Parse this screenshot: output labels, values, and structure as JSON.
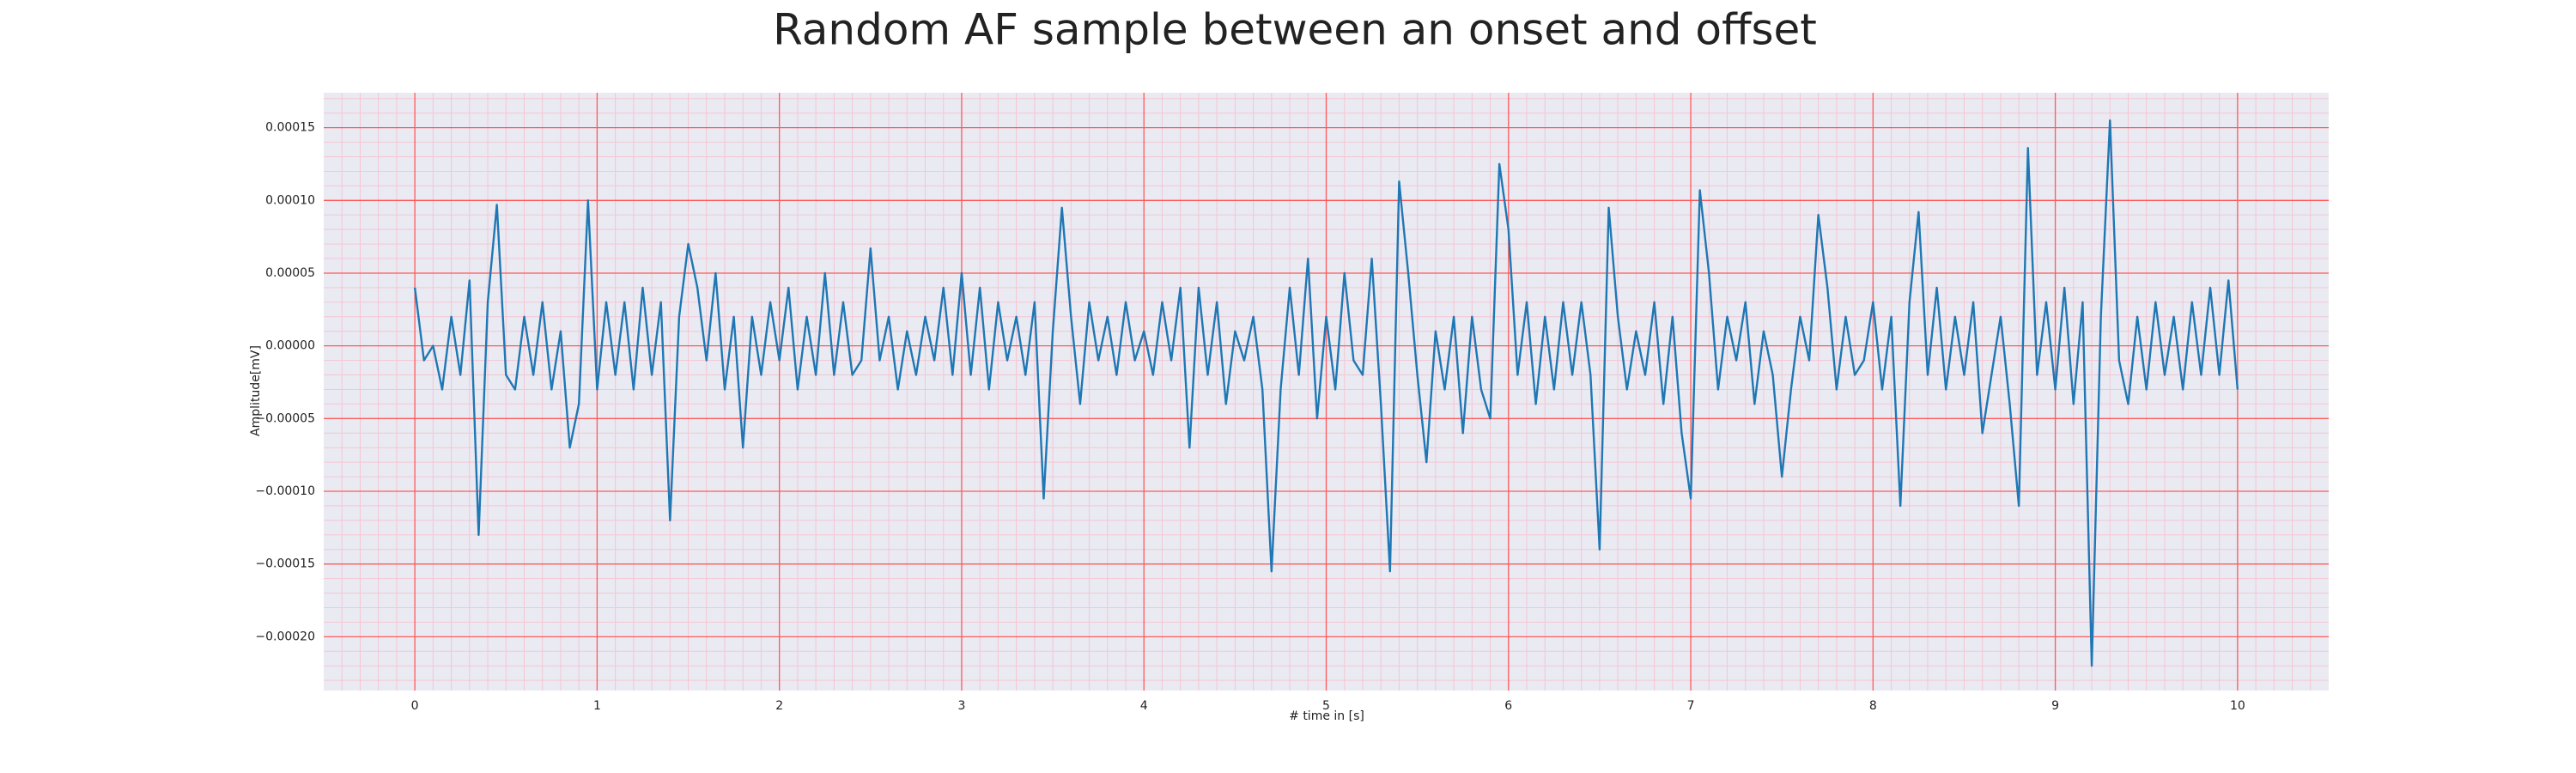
{
  "chart_data": {
    "type": "line",
    "title": "Random AF sample between an onset and offset",
    "xlabel": "# time in [s]",
    "ylabel": "Amplitude[mV]",
    "x": [
      0,
      0.05,
      0.1,
      0.15,
      0.2,
      0.25,
      0.3,
      0.35,
      0.4,
      0.45,
      0.5,
      0.55,
      0.6,
      0.65,
      0.7,
      0.75,
      0.8,
      0.85,
      0.9,
      0.95,
      1,
      1.05,
      1.1,
      1.15,
      1.2,
      1.25,
      1.3,
      1.35,
      1.4,
      1.45,
      1.5,
      1.55,
      1.6,
      1.65,
      1.7,
      1.75,
      1.8,
      1.85,
      1.9,
      1.95,
      2,
      2.05,
      2.1,
      2.15,
      2.2,
      2.25,
      2.3,
      2.35,
      2.4,
      2.45,
      2.5,
      2.55,
      2.6,
      2.65,
      2.7,
      2.75,
      2.8,
      2.85,
      2.9,
      2.95,
      3,
      3.05,
      3.1,
      3.15,
      3.2,
      3.25,
      3.3,
      3.35,
      3.4,
      3.45,
      3.5,
      3.55,
      3.6,
      3.65,
      3.7,
      3.75,
      3.8,
      3.85,
      3.9,
      3.95,
      4,
      4.05,
      4.1,
      4.15,
      4.2,
      4.25,
      4.3,
      4.35,
      4.4,
      4.45,
      4.5,
      4.55,
      4.6,
      4.65,
      4.7,
      4.75,
      4.8,
      4.85,
      4.9,
      4.95,
      5,
      5.05,
      5.1,
      5.15,
      5.2,
      5.25,
      5.3,
      5.35,
      5.4,
      5.45,
      5.5,
      5.55,
      5.6,
      5.65,
      5.7,
      5.75,
      5.8,
      5.85,
      5.9,
      5.95,
      6,
      6.05,
      6.1,
      6.15,
      6.2,
      6.25,
      6.3,
      6.35,
      6.4,
      6.45,
      6.5,
      6.55,
      6.6,
      6.65,
      6.7,
      6.75,
      6.8,
      6.85,
      6.9,
      6.95,
      7,
      7.05,
      7.1,
      7.15,
      7.2,
      7.25,
      7.3,
      7.35,
      7.4,
      7.45,
      7.5,
      7.55,
      7.6,
      7.65,
      7.7,
      7.75,
      7.8,
      7.85,
      7.9,
      7.95,
      8,
      8.05,
      8.1,
      8.15,
      8.2,
      8.25,
      8.3,
      8.35,
      8.4,
      8.45,
      8.5,
      8.55,
      8.6,
      8.65,
      8.7,
      8.75,
      8.8,
      8.85,
      8.9,
      8.95,
      9,
      9.05,
      9.1,
      9.15,
      9.2,
      9.25,
      9.3,
      9.35,
      9.4,
      9.45,
      9.5,
      9.55,
      9.6,
      9.65,
      9.7,
      9.75,
      9.8,
      9.85,
      9.9,
      9.95,
      10
    ],
    "values": [
      4e-05,
      -1e-05,
      0,
      -3e-05,
      2e-05,
      -2e-05,
      4.5e-05,
      -0.00013,
      3e-05,
      9.7e-05,
      -2e-05,
      -3e-05,
      2e-05,
      -2e-05,
      3e-05,
      -3e-05,
      1e-05,
      -7e-05,
      -4e-05,
      0.0001,
      -3e-05,
      3e-05,
      -2e-05,
      3e-05,
      -3e-05,
      4e-05,
      -2e-05,
      3e-05,
      -0.00012,
      2e-05,
      7e-05,
      4e-05,
      -1e-05,
      5e-05,
      -3e-05,
      2e-05,
      -7e-05,
      2e-05,
      -2e-05,
      3e-05,
      -1e-05,
      4e-05,
      -3e-05,
      2e-05,
      -2e-05,
      5e-05,
      -2e-05,
      3e-05,
      -2e-05,
      -1e-05,
      6.7e-05,
      -1e-05,
      2e-05,
      -3e-05,
      1e-05,
      -2e-05,
      2e-05,
      -1e-05,
      4e-05,
      -2e-05,
      5e-05,
      -2e-05,
      4e-05,
      -3e-05,
      3e-05,
      -1e-05,
      2e-05,
      -2e-05,
      3e-05,
      -0.000105,
      1e-05,
      9.5e-05,
      2e-05,
      -4e-05,
      3e-05,
      -1e-05,
      2e-05,
      -2e-05,
      3e-05,
      -1e-05,
      1e-05,
      -2e-05,
      3e-05,
      -1e-05,
      4e-05,
      -7e-05,
      4e-05,
      -2e-05,
      3e-05,
      -4e-05,
      1e-05,
      -1e-05,
      2e-05,
      -3e-05,
      -0.000155,
      -3e-05,
      4e-05,
      -2e-05,
      6e-05,
      -5e-05,
      2e-05,
      -3e-05,
      5e-05,
      -1e-05,
      -2e-05,
      6e-05,
      -4e-05,
      -0.000155,
      0.000113,
      5e-05,
      -2e-05,
      -8e-05,
      1e-05,
      -3e-05,
      2e-05,
      -6e-05,
      2e-05,
      -3e-05,
      -5e-05,
      0.000125,
      8e-05,
      -2e-05,
      3e-05,
      -4e-05,
      2e-05,
      -3e-05,
      3e-05,
      -2e-05,
      3e-05,
      -2e-05,
      -0.00014,
      9.5e-05,
      2e-05,
      -3e-05,
      1e-05,
      -2e-05,
      3e-05,
      -4e-05,
      2e-05,
      -6e-05,
      -0.000105,
      0.000107,
      5e-05,
      -3e-05,
      2e-05,
      -1e-05,
      3e-05,
      -4e-05,
      1e-05,
      -2e-05,
      -9e-05,
      -3e-05,
      2e-05,
      -1e-05,
      9e-05,
      4e-05,
      -3e-05,
      2e-05,
      -2e-05,
      -1e-05,
      3e-05,
      -3e-05,
      2e-05,
      -0.00011,
      3e-05,
      9.2e-05,
      -2e-05,
      4e-05,
      -3e-05,
      2e-05,
      -2e-05,
      3e-05,
      -6e-05,
      -2e-05,
      2e-05,
      -4e-05,
      -0.00011,
      0.000136,
      -2e-05,
      3e-05,
      -3e-05,
      4e-05,
      -4e-05,
      3e-05,
      -0.00022,
      2e-05,
      0.000155,
      -1e-05,
      -4e-05,
      2e-05,
      -3e-05,
      3e-05,
      -2e-05,
      2e-05,
      -3e-05,
      3e-05,
      -2e-05,
      4e-05,
      -2e-05,
      4.5e-05,
      -3e-05
    ],
    "color": "#1f77b4",
    "xlim": [
      -0.5,
      10.5
    ],
    "xticks": [
      0,
      1,
      2,
      3,
      4,
      5,
      6,
      7,
      8,
      9,
      10
    ],
    "ylim": [
      -0.000237,
      0.000174
    ],
    "yticks": [
      {
        "value": -0.0002,
        "label": "−0.00020"
      },
      {
        "value": -0.00015,
        "label": "−0.00015"
      },
      {
        "value": -0.0001,
        "label": "−0.00010"
      },
      {
        "value": -5e-05,
        "label": "−0.00005"
      },
      {
        "value": 0,
        "label": "0.00000"
      },
      {
        "value": 5e-05,
        "label": "0.00005"
      },
      {
        "value": 0.0001,
        "label": "0.00010"
      },
      {
        "value": 0.00015,
        "label": "0.00015"
      }
    ],
    "grid": true,
    "grid_color": "#ff5a5a",
    "minor_grid": true,
    "minor_grid_color": "#f4c6d4",
    "background": "#eaeaf2"
  }
}
